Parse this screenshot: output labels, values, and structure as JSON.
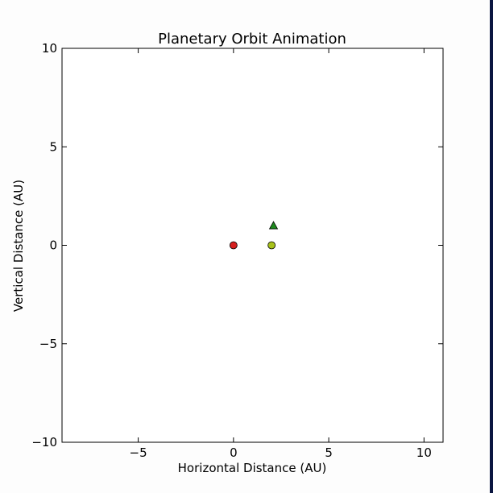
{
  "chart_data": {
    "type": "scatter",
    "title": "Planetary Orbit Animation",
    "xlabel": "Horizontal Distance (AU)",
    "ylabel": "Vertical Distance (AU)",
    "xlim": [
      -9,
      11
    ],
    "ylim": [
      -10,
      10
    ],
    "xticks": [
      -5,
      0,
      5,
      10
    ],
    "xtick_labels": [
      "−5",
      "0",
      "5",
      "10"
    ],
    "yticks": [
      -10,
      -5,
      0,
      5,
      10
    ],
    "ytick_labels": [
      "−10",
      "−5",
      "0",
      "5",
      "10"
    ],
    "grid": false,
    "points": [
      {
        "x": 0,
        "y": 0,
        "marker": "circle",
        "color": "#d62020"
      },
      {
        "x": 2,
        "y": 0,
        "marker": "circle",
        "color": "#a8c21a"
      },
      {
        "x": 2.1,
        "y": 1,
        "marker": "triangle",
        "color": "#1f8a1f"
      }
    ]
  }
}
